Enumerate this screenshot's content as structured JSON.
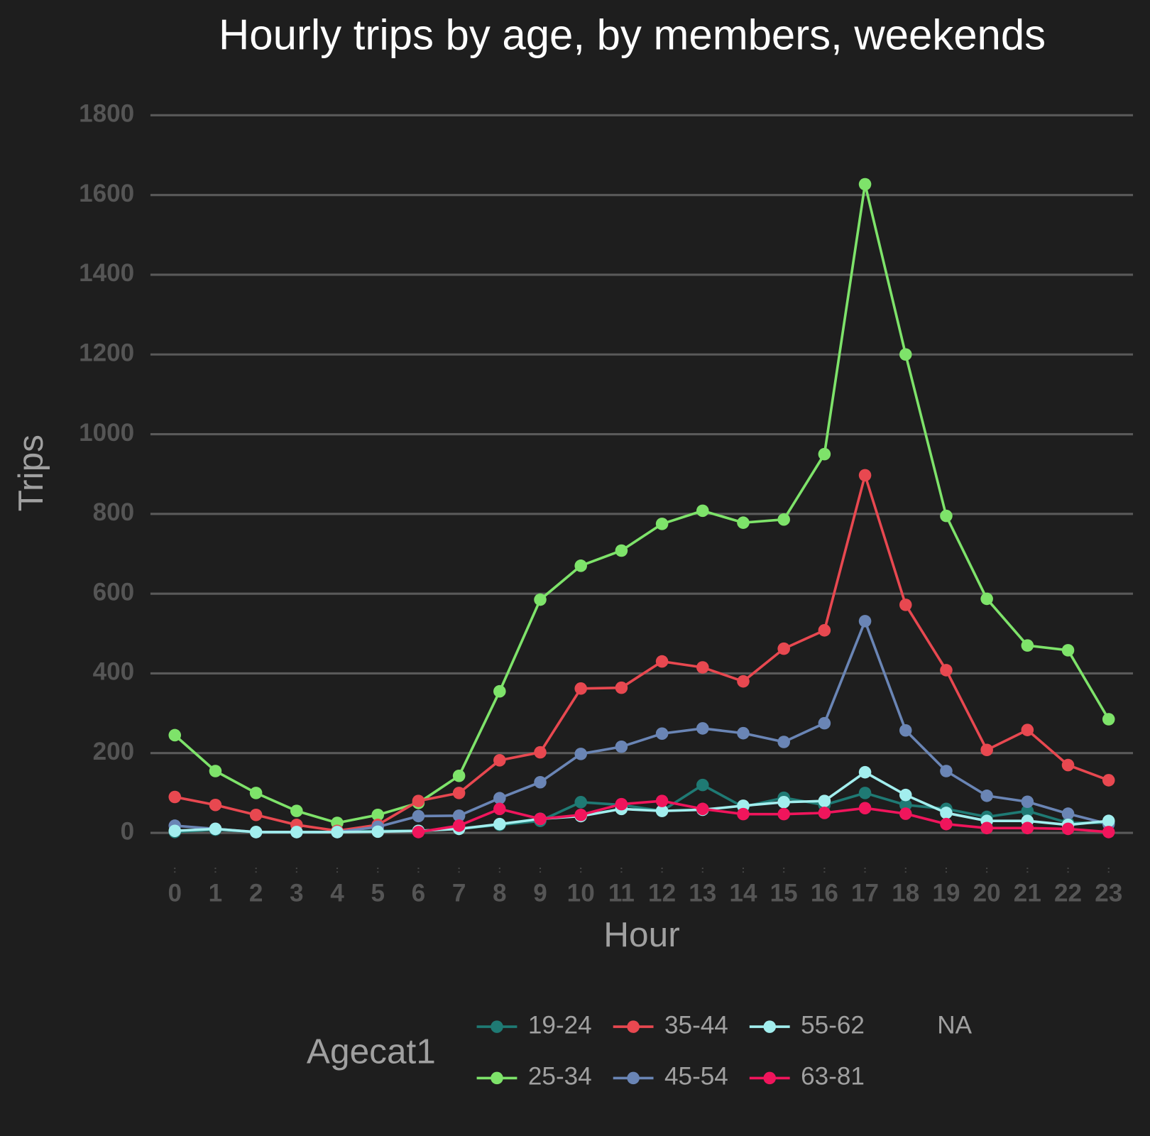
{
  "chart_data": {
    "type": "line",
    "title": "Hourly trips by age, by members, weekends",
    "x_label": "Hour",
    "y_label": "Trips",
    "x": [
      0,
      1,
      2,
      3,
      4,
      5,
      6,
      7,
      8,
      9,
      10,
      11,
      12,
      13,
      14,
      15,
      16,
      17,
      18,
      19,
      20,
      21,
      22,
      23
    ],
    "xlim": [
      -0.6,
      23.6
    ],
    "xticks": [
      0,
      1,
      2,
      3,
      4,
      5,
      6,
      7,
      8,
      9,
      10,
      11,
      12,
      13,
      14,
      15,
      16,
      17,
      18,
      19,
      20,
      21,
      22,
      23
    ],
    "ylim": [
      -100,
      1850
    ],
    "yticks": [
      0,
      200,
      400,
      600,
      800,
      1000,
      1200,
      1400,
      1600,
      1800
    ],
    "grid": true,
    "legend_title": "Agecat1",
    "legend_position": "bottom",
    "series": [
      {
        "name": "19-24",
        "color": "#1f7a74",
        "values": [
          2,
          8,
          2,
          2,
          2,
          5,
          5,
          10,
          20,
          30,
          77,
          70,
          55,
          120,
          65,
          88,
          70,
          100,
          70,
          60,
          40,
          55,
          25,
          25
        ]
      },
      {
        "name": "25-34",
        "color": "#7ee36a",
        "values": [
          245,
          155,
          100,
          55,
          25,
          45,
          75,
          143,
          355,
          585,
          670,
          708,
          775,
          808,
          778,
          786,
          950,
          1627,
          1200,
          795,
          587,
          470,
          458,
          285
        ]
      },
      {
        "name": "35-44",
        "color": "#e84850",
        "values": [
          90,
          70,
          45,
          20,
          5,
          20,
          80,
          100,
          182,
          202,
          362,
          364,
          430,
          415,
          380,
          462,
          508,
          897,
          572,
          408,
          208,
          258,
          170,
          132
        ]
      },
      {
        "name": "45-54",
        "color": "#6a85b5",
        "values": [
          18,
          10,
          2,
          2,
          2,
          15,
          42,
          43,
          87,
          127,
          198,
          216,
          249,
          262,
          250,
          228,
          275,
          531,
          257,
          155,
          93,
          78,
          48,
          22
        ]
      },
      {
        "name": "55-62",
        "color": "#a2eeee",
        "values": [
          5,
          10,
          2,
          2,
          2,
          3,
          5,
          10,
          22,
          35,
          42,
          60,
          55,
          58,
          68,
          77,
          80,
          152,
          95,
          50,
          30,
          30,
          20,
          30
        ]
      },
      {
        "name": "63-81",
        "color": "#f0155c",
        "values": [
          null,
          null,
          null,
          null,
          null,
          null,
          2,
          18,
          60,
          35,
          45,
          72,
          80,
          60,
          47,
          47,
          50,
          62,
          48,
          22,
          12,
          12,
          10,
          2
        ]
      },
      {
        "name": "NA",
        "color": null,
        "values": [
          null,
          null,
          null,
          null,
          null,
          null,
          null,
          null,
          null,
          null,
          null,
          null,
          null,
          null,
          null,
          null,
          null,
          null,
          null,
          null,
          null,
          null,
          null,
          null
        ]
      }
    ]
  }
}
